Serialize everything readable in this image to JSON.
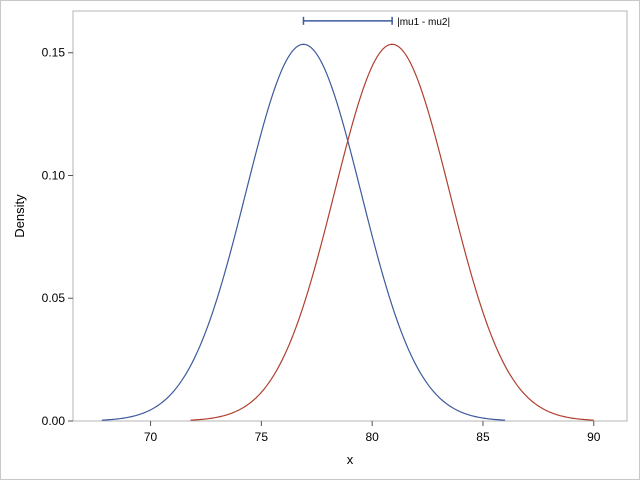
{
  "chart_data": {
    "type": "line",
    "title": "",
    "xlabel": "x",
    "ylabel": "Density",
    "xlim": [
      66.5,
      91.5
    ],
    "ylim": [
      0,
      0.167
    ],
    "x_ticks": [
      70,
      75,
      80,
      85,
      90
    ],
    "x_tick_labels": [
      "70",
      "75",
      "80",
      "85",
      "90"
    ],
    "y_ticks": [
      0,
      0.05,
      0.1,
      0.15
    ],
    "y_tick_labels": [
      "0.00",
      "0.05",
      "0.10",
      "0.15"
    ],
    "grid": false,
    "series": [
      {
        "mu": 76.9,
        "sigma": 2.6,
        "x_range": [
          67.8,
          86.0
        ],
        "color": "#3d5a9c"
      },
      {
        "mu": 80.9,
        "sigma": 2.6,
        "x_range": [
          71.8,
          90.0
        ],
        "color": "#b0402f"
      }
    ],
    "annotation": {
      "label": "|mu1 - mu2|",
      "x_start": 76.9,
      "x_end": 80.9,
      "y": 0.163,
      "color": "#3d5a9c"
    }
  }
}
